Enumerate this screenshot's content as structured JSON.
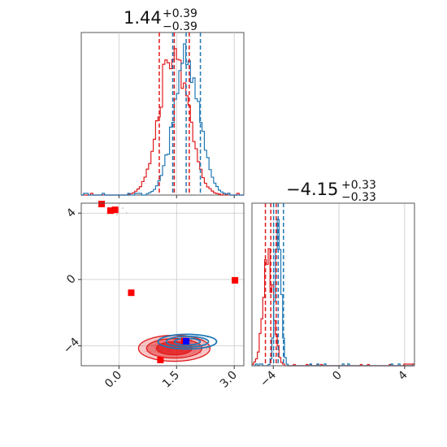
{
  "chart_data": {
    "type": "corner",
    "grid": true,
    "colors": {
      "red": "#e11a1c",
      "blue": "#1f77b4",
      "marker_red": "#ff0000",
      "marker_blue": "#0000ff"
    },
    "param1": {
      "title_main": "1.44",
      "title_sup": "+0.39",
      "title_sub": "−0.39",
      "lim": [
        -0.98,
        3.25
      ],
      "ticks": [
        0.0,
        1.5,
        3.0
      ],
      "tick_labels": [
        "0.0",
        "1.5",
        "3.0"
      ],
      "red_quantiles": [
        1.05,
        1.44,
        1.83
      ],
      "blue_quantiles": [
        1.4,
        1.75,
        2.12
      ],
      "red_hist_centers": [
        1.0,
        1.1,
        1.2,
        1.3,
        1.4,
        1.5,
        1.6,
        1.7,
        1.8,
        1.9,
        2.0
      ],
      "blue_hist_centers": [
        1.4,
        1.5,
        1.6,
        1.7,
        1.8,
        1.9,
        2.0,
        2.1,
        2.2,
        2.3,
        2.4,
        2.5
      ]
    },
    "param2": {
      "title_main": "−4.15",
      "title_sup": "+0.33",
      "title_sub": "−0.33",
      "lim": [
        -5.3,
        4.6
      ],
      "ticks": [
        -4,
        0,
        4
      ],
      "tick_labels": [
        "−4",
        "0",
        "4"
      ],
      "red_quantiles": [
        -4.48,
        -4.15,
        -3.82
      ],
      "blue_quantiles": [
        -3.98,
        -3.7,
        -3.38
      ],
      "red_hist_peak": -4.3,
      "blue_hist_peak": -3.7
    },
    "scatter_ylim": [
      -5.2,
      4.6
    ],
    "red_markers": [
      {
        "x": -0.45,
        "y": 4.55
      },
      {
        "x": -0.22,
        "y": 4.15
      },
      {
        "x": -0.1,
        "y": 4.2
      },
      {
        "x": 0.32,
        "y": -0.8
      },
      {
        "x": 3.02,
        "y": -0.05
      },
      {
        "x": 1.08,
        "y": -4.85
      },
      {
        "x": 1.7,
        "y": -3.7
      }
    ],
    "blue_markers": [
      {
        "x": 1.75,
        "y": -3.72
      }
    ],
    "red_contour_center": {
      "x": 1.44,
      "y": -4.15
    },
    "blue_contour_center": {
      "x": 1.78,
      "y": -3.75
    }
  }
}
